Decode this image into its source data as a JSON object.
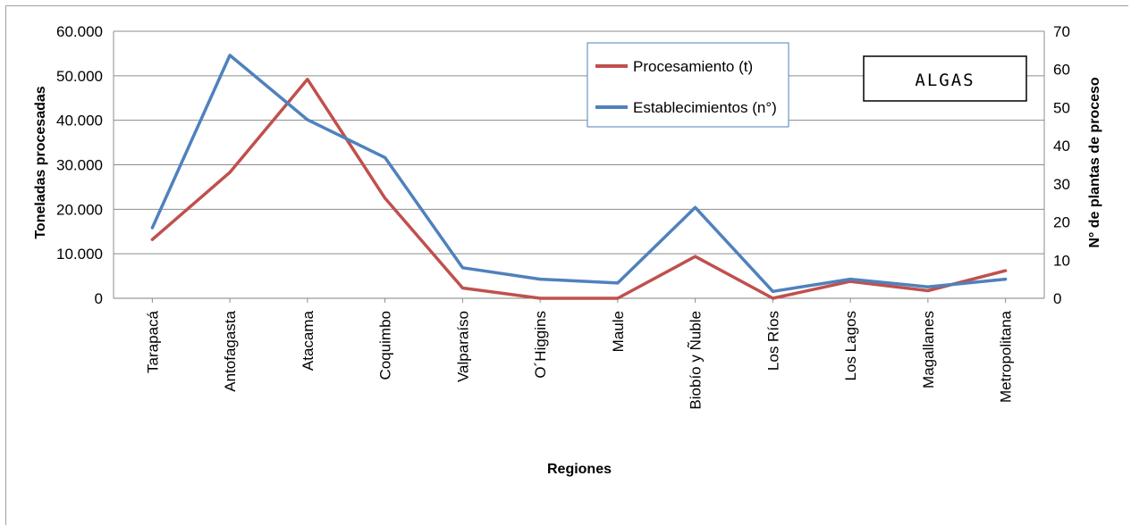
{
  "chart_data": {
    "type": "line",
    "categories": [
      "Tarapacá",
      "Antofagasta",
      "Atacama",
      "Coquimbo",
      "Valparaíso",
      "O´Higgins",
      "Maule",
      "Biobío y Ñuble",
      "Los Ríos",
      "Los Lagos",
      "Magallanes",
      "Metropolitana"
    ],
    "series": [
      {
        "name": "Procesamiento (t)",
        "axis": "left",
        "color": "#c0504d",
        "values": [
          13200,
          28300,
          49200,
          22500,
          2300,
          0,
          0,
          9400,
          0,
          3800,
          1700,
          6200
        ]
      },
      {
        "name": "Establecimientos (n°)",
        "axis": "right",
        "color": "#4f81bd",
        "values": [
          18.5,
          63.7,
          46.8,
          36.9,
          8.0,
          5.0,
          4.0,
          23.8,
          1.8,
          5.0,
          3.0,
          5.0
        ]
      }
    ],
    "xlabel": "Regiones",
    "ylabel_left": "Toneladas procesadas",
    "ylabel_right": "N° de plantas de proceso",
    "ylim_left": [
      0,
      60000
    ],
    "ylim_right": [
      0,
      70
    ],
    "yticks_left": [
      "0",
      "10.000",
      "20.000",
      "30.000",
      "40.000",
      "50.000",
      "60.000"
    ],
    "yticks_right": [
      "0",
      "10",
      "20",
      "30",
      "40",
      "50",
      "60",
      "70"
    ],
    "grid": true,
    "legend_position": "top-center",
    "annotation": "ALGAS"
  }
}
